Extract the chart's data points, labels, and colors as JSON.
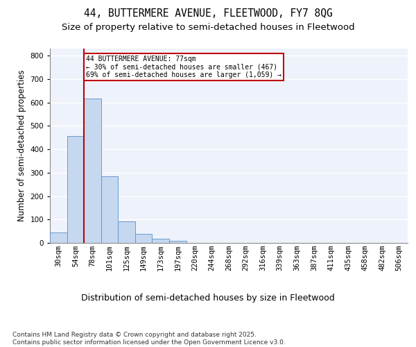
{
  "title1": "44, BUTTERMERE AVENUE, FLEETWOOD, FY7 8QG",
  "title2": "Size of property relative to semi-detached houses in Fleetwood",
  "xlabel": "Distribution of semi-detached houses by size in Fleetwood",
  "ylabel": "Number of semi-detached properties",
  "categories": [
    "30sqm",
    "54sqm",
    "78sqm",
    "101sqm",
    "125sqm",
    "149sqm",
    "173sqm",
    "197sqm",
    "220sqm",
    "244sqm",
    "268sqm",
    "292sqm",
    "316sqm",
    "339sqm",
    "363sqm",
    "387sqm",
    "411sqm",
    "435sqm",
    "458sqm",
    "482sqm",
    "506sqm"
  ],
  "values": [
    45,
    457,
    618,
    285,
    92,
    40,
    18,
    10,
    0,
    0,
    0,
    0,
    0,
    0,
    0,
    0,
    0,
    0,
    0,
    0,
    0
  ],
  "bar_color": "#c5d8f0",
  "bar_edge_color": "#5b8fc9",
  "vline_color": "#c00000",
  "annotation_text": "44 BUTTERMERE AVENUE: 77sqm\n← 30% of semi-detached houses are smaller (467)\n69% of semi-detached houses are larger (1,059) →",
  "annotation_box_color": "#ffffff",
  "annotation_box_edge": "#c00000",
  "ylim": [
    0,
    830
  ],
  "yticks": [
    0,
    100,
    200,
    300,
    400,
    500,
    600,
    700,
    800
  ],
  "background_color": "#eef2fb",
  "grid_color": "#ffffff",
  "footnote": "Contains HM Land Registry data © Crown copyright and database right 2025.\nContains public sector information licensed under the Open Government Licence v3.0.",
  "title1_fontsize": 10.5,
  "title2_fontsize": 9.5,
  "xlabel_fontsize": 9,
  "ylabel_fontsize": 8.5,
  "tick_fontsize": 7.5,
  "footnote_fontsize": 6.5
}
